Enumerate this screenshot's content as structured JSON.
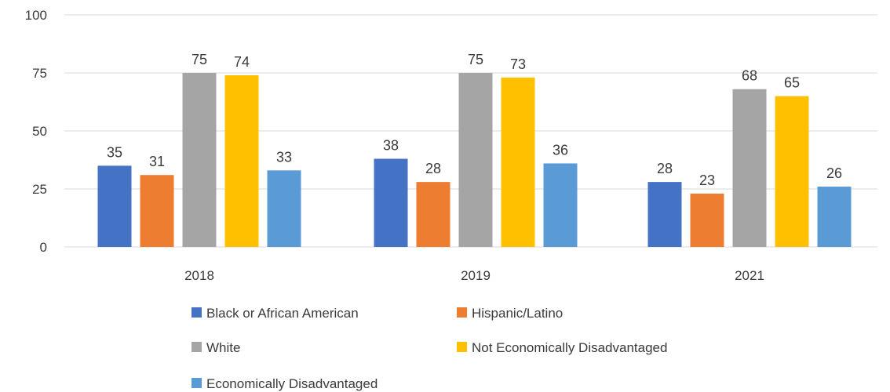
{
  "chart_data": {
    "type": "bar",
    "title": "",
    "xlabel": "",
    "ylabel": "",
    "categories": [
      "2018",
      "2019",
      "2021"
    ],
    "ylim": [
      0,
      100
    ],
    "yticks": [
      "0",
      "25",
      "50",
      "75",
      "100"
    ],
    "grid": true,
    "legend_position": "bottom",
    "series": [
      {
        "name": "Black or African American",
        "color": "#4472C4",
        "values": [
          35,
          38,
          28
        ]
      },
      {
        "name": "Hispanic/Latino",
        "color": "#ED7D31",
        "values": [
          31,
          28,
          23
        ]
      },
      {
        "name": "White",
        "color": "#A5A5A5",
        "values": [
          75,
          75,
          68
        ]
      },
      {
        "name": "Not Economically Disadvantaged",
        "color": "#FFC000",
        "values": [
          74,
          73,
          65
        ]
      },
      {
        "name": "Economically Disadvantaged",
        "color": "#5B9BD5",
        "values": [
          33,
          36,
          26
        ]
      }
    ]
  }
}
